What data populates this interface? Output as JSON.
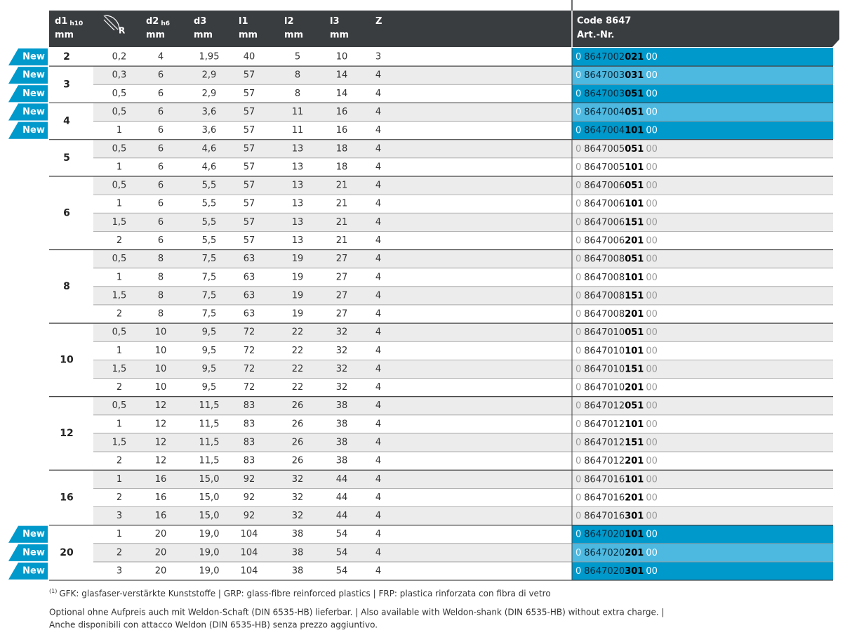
{
  "badge": "New",
  "header": {
    "columns": [
      {
        "label": "d1",
        "sub": "h10",
        "unit": "mm"
      },
      {
        "label": "R"
      },
      {
        "label": "d2",
        "sub": "h6",
        "unit": "mm"
      },
      {
        "label": "d3",
        "unit": "mm"
      },
      {
        "label": "l1",
        "unit": "mm"
      },
      {
        "label": "l2",
        "unit": "mm"
      },
      {
        "label": "l3",
        "unit": "mm"
      },
      {
        "label": "Z"
      }
    ],
    "code": {
      "label": "Code 8647",
      "sub": "Art.-Nr."
    }
  },
  "groups": [
    {
      "d1": "2",
      "rows": [
        {
          "new": true,
          "values": [
            "0,2",
            "4",
            "1,95",
            "40",
            "5",
            "10",
            "3"
          ],
          "code": [
            "0",
            "8647002",
            "021",
            "00"
          ]
        }
      ]
    },
    {
      "d1": "3",
      "rows": [
        {
          "new": true,
          "values": [
            "0,3",
            "6",
            "2,9",
            "57",
            "8",
            "14",
            "4"
          ],
          "code": [
            "0",
            "8647003",
            "031",
            "00"
          ]
        },
        {
          "new": true,
          "values": [
            "0,5",
            "6",
            "2,9",
            "57",
            "8",
            "14",
            "4"
          ],
          "code": [
            "0",
            "8647003",
            "051",
            "00"
          ]
        }
      ]
    },
    {
      "d1": "4",
      "rows": [
        {
          "new": true,
          "values": [
            "0,5",
            "6",
            "3,6",
            "57",
            "11",
            "16",
            "4"
          ],
          "code": [
            "0",
            "8647004",
            "051",
            "00"
          ]
        },
        {
          "new": true,
          "values": [
            "1",
            "6",
            "3,6",
            "57",
            "11",
            "16",
            "4"
          ],
          "code": [
            "0",
            "8647004",
            "101",
            "00"
          ]
        }
      ]
    },
    {
      "d1": "5",
      "rows": [
        {
          "new": false,
          "values": [
            "0,5",
            "6",
            "4,6",
            "57",
            "13",
            "18",
            "4"
          ],
          "code": [
            "0",
            "8647005",
            "051",
            "00"
          ]
        },
        {
          "new": false,
          "values": [
            "1",
            "6",
            "4,6",
            "57",
            "13",
            "18",
            "4"
          ],
          "code": [
            "0",
            "8647005",
            "101",
            "00"
          ]
        }
      ]
    },
    {
      "d1": "6",
      "rows": [
        {
          "new": false,
          "values": [
            "0,5",
            "6",
            "5,5",
            "57",
            "13",
            "21",
            "4"
          ],
          "code": [
            "0",
            "8647006",
            "051",
            "00"
          ]
        },
        {
          "new": false,
          "values": [
            "1",
            "6",
            "5,5",
            "57",
            "13",
            "21",
            "4"
          ],
          "code": [
            "0",
            "8647006",
            "101",
            "00"
          ]
        },
        {
          "new": false,
          "values": [
            "1,5",
            "6",
            "5,5",
            "57",
            "13",
            "21",
            "4"
          ],
          "code": [
            "0",
            "8647006",
            "151",
            "00"
          ]
        },
        {
          "new": false,
          "values": [
            "2",
            "6",
            "5,5",
            "57",
            "13",
            "21",
            "4"
          ],
          "code": [
            "0",
            "8647006",
            "201",
            "00"
          ]
        }
      ]
    },
    {
      "d1": "8",
      "rows": [
        {
          "new": false,
          "values": [
            "0,5",
            "8",
            "7,5",
            "63",
            "19",
            "27",
            "4"
          ],
          "code": [
            "0",
            "8647008",
            "051",
            "00"
          ]
        },
        {
          "new": false,
          "values": [
            "1",
            "8",
            "7,5",
            "63",
            "19",
            "27",
            "4"
          ],
          "code": [
            "0",
            "8647008",
            "101",
            "00"
          ]
        },
        {
          "new": false,
          "values": [
            "1,5",
            "8",
            "7,5",
            "63",
            "19",
            "27",
            "4"
          ],
          "code": [
            "0",
            "8647008",
            "151",
            "00"
          ]
        },
        {
          "new": false,
          "values": [
            "2",
            "8",
            "7,5",
            "63",
            "19",
            "27",
            "4"
          ],
          "code": [
            "0",
            "8647008",
            "201",
            "00"
          ]
        }
      ]
    },
    {
      "d1": "10",
      "rows": [
        {
          "new": false,
          "values": [
            "0,5",
            "10",
            "9,5",
            "72",
            "22",
            "32",
            "4"
          ],
          "code": [
            "0",
            "8647010",
            "051",
            "00"
          ]
        },
        {
          "new": false,
          "values": [
            "1",
            "10",
            "9,5",
            "72",
            "22",
            "32",
            "4"
          ],
          "code": [
            "0",
            "8647010",
            "101",
            "00"
          ]
        },
        {
          "new": false,
          "values": [
            "1,5",
            "10",
            "9,5",
            "72",
            "22",
            "32",
            "4"
          ],
          "code": [
            "0",
            "8647010",
            "151",
            "00"
          ]
        },
        {
          "new": false,
          "values": [
            "2",
            "10",
            "9,5",
            "72",
            "22",
            "32",
            "4"
          ],
          "code": [
            "0",
            "8647010",
            "201",
            "00"
          ]
        }
      ]
    },
    {
      "d1": "12",
      "rows": [
        {
          "new": false,
          "values": [
            "0,5",
            "12",
            "11,5",
            "83",
            "26",
            "38",
            "4"
          ],
          "code": [
            "0",
            "8647012",
            "051",
            "00"
          ]
        },
        {
          "new": false,
          "values": [
            "1",
            "12",
            "11,5",
            "83",
            "26",
            "38",
            "4"
          ],
          "code": [
            "0",
            "8647012",
            "101",
            "00"
          ]
        },
        {
          "new": false,
          "values": [
            "1,5",
            "12",
            "11,5",
            "83",
            "26",
            "38",
            "4"
          ],
          "code": [
            "0",
            "8647012",
            "151",
            "00"
          ]
        },
        {
          "new": false,
          "values": [
            "2",
            "12",
            "11,5",
            "83",
            "26",
            "38",
            "4"
          ],
          "code": [
            "0",
            "8647012",
            "201",
            "00"
          ]
        }
      ]
    },
    {
      "d1": "16",
      "rows": [
        {
          "new": false,
          "values": [
            "1",
            "16",
            "15,0",
            "92",
            "32",
            "44",
            "4"
          ],
          "code": [
            "0",
            "8647016",
            "101",
            "00"
          ]
        },
        {
          "new": false,
          "values": [
            "2",
            "16",
            "15,0",
            "92",
            "32",
            "44",
            "4"
          ],
          "code": [
            "0",
            "8647016",
            "201",
            "00"
          ]
        },
        {
          "new": false,
          "values": [
            "3",
            "16",
            "15,0",
            "92",
            "32",
            "44",
            "4"
          ],
          "code": [
            "0",
            "8647016",
            "301",
            "00"
          ]
        }
      ]
    },
    {
      "d1": "20",
      "rows": [
        {
          "new": true,
          "values": [
            "1",
            "20",
            "19,0",
            "104",
            "38",
            "54",
            "4"
          ],
          "code": [
            "0",
            "8647020",
            "101",
            "00"
          ]
        },
        {
          "new": true,
          "values": [
            "2",
            "20",
            "19,0",
            "104",
            "38",
            "54",
            "4"
          ],
          "code": [
            "0",
            "8647020",
            "201",
            "00"
          ]
        },
        {
          "new": true,
          "values": [
            "3",
            "20",
            "19,0",
            "104",
            "38",
            "54",
            "4"
          ],
          "code": [
            "0",
            "8647020",
            "301",
            "00"
          ]
        }
      ]
    }
  ],
  "footer": {
    "footnote": {
      "marker": "(1)",
      "text": "GFK: glasfaser-verstärkte Kunststoffe | GRP: glass-fibre reinforced plastics | FRP: plastica rinforzata con fibra di vetro"
    },
    "notes": [
      "Optional ohne Aufpreis auch mit Weldon-Schaft (DIN 6535-HB) lieferbar. | Also available with Weldon-shank (DIN 6535-HB) without extra charge. |",
      "Anche disponibili con attacco Weldon (DIN 6535-HB) senza prezzo aggiuntivo."
    ]
  }
}
